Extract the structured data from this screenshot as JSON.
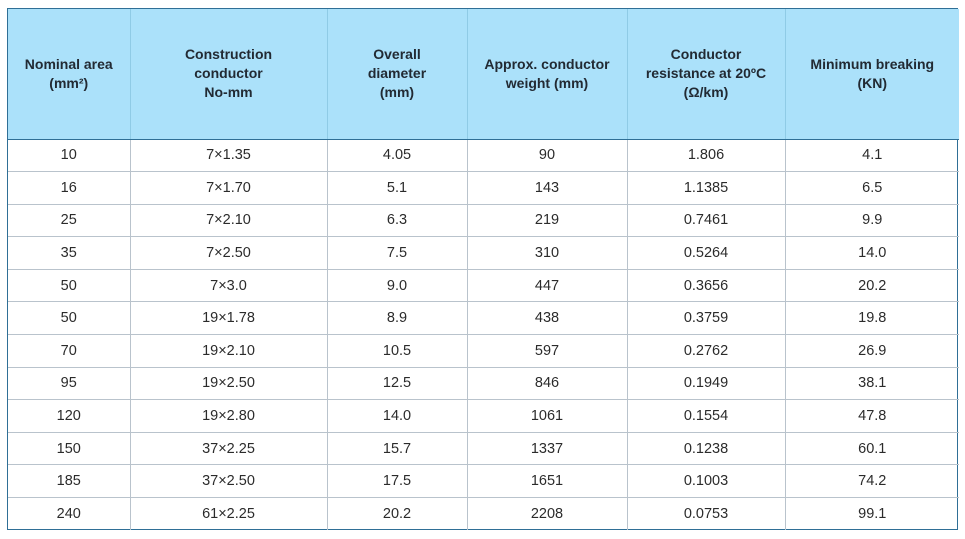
{
  "table": {
    "headers": [
      "Nominal area\n(mm²)",
      "Construction\nconductor\nNo-mm",
      "Overall\ndiameter\n(mm)",
      "Approx. conductor\nweight (mm)",
      "Conductor\nresistance at 20ºC\n(Ω/km)",
      "Minimum breaking\n(KN)"
    ],
    "rows": [
      [
        "10",
        "7×1.35",
        "4.05",
        "90",
        "1.806",
        "4.1"
      ],
      [
        "16",
        "7×1.70",
        "5.1",
        "143",
        "1.1385",
        "6.5"
      ],
      [
        "25",
        "7×2.10",
        "6.3",
        "219",
        "0.7461",
        "9.9"
      ],
      [
        "35",
        "7×2.50",
        "7.5",
        "310",
        "0.5264",
        "14.0"
      ],
      [
        "50",
        "7×3.0",
        "9.0",
        "447",
        "0.3656",
        "20.2"
      ],
      [
        "50",
        "19×1.78",
        "8.9",
        "438",
        "0.3759",
        "19.8"
      ],
      [
        "70",
        "19×2.10",
        "10.5",
        "597",
        "0.2762",
        "26.9"
      ],
      [
        "95",
        "19×2.50",
        "12.5",
        "846",
        "0.1949",
        "38.1"
      ],
      [
        "120",
        "19×2.80",
        "14.0",
        "1061",
        "0.1554",
        "47.8"
      ],
      [
        "150",
        "37×2.25",
        "15.7",
        "1337",
        "0.1238",
        "60.1"
      ],
      [
        "185",
        "37×2.50",
        "17.5",
        "1651",
        "0.1003",
        "74.2"
      ],
      [
        "240",
        "61×2.25",
        "20.2",
        "2208",
        "0.0753",
        "99.1"
      ]
    ]
  }
}
